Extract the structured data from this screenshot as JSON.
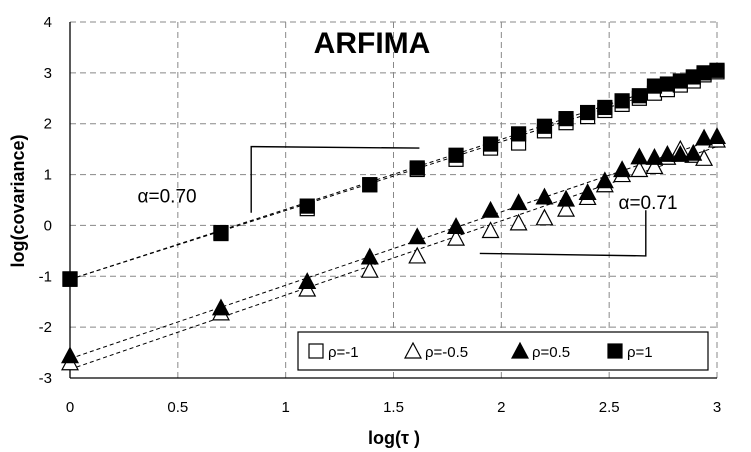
{
  "chart_data": {
    "type": "scatter",
    "title": "ARFIMA",
    "xlabel": "log(τ )",
    "ylabel": "log(covariance)",
    "xlim": [
      0,
      3
    ],
    "ylim": [
      -3,
      4
    ],
    "x_ticks": [
      "0",
      "0.5",
      "1",
      "1.5",
      "2",
      "2.5",
      "3"
    ],
    "y_ticks": [
      "-3",
      "-2",
      "-1",
      "0",
      "1",
      "2",
      "3",
      "4"
    ],
    "grid": true,
    "legend_position": "bottom-right",
    "annotations": [
      {
        "text": "α=0.70",
        "x": 0.45,
        "y": 0.45
      },
      {
        "text": "α=0.71",
        "x": 2.68,
        "y": 0.32
      }
    ],
    "slope_guides": [
      {
        "points": [
          [
            0.84,
            0.25
          ],
          [
            0.84,
            1.55
          ],
          [
            1.62,
            1.52
          ]
        ]
      },
      {
        "points": [
          [
            1.9,
            -0.55
          ],
          [
            2.67,
            -0.6
          ],
          [
            2.67,
            0.3
          ]
        ]
      }
    ],
    "fit_lines": [
      {
        "x": [
          0,
          3
        ],
        "y": [
          -1.06,
          3.07
        ]
      },
      {
        "x": [
          0,
          3
        ],
        "y": [
          -1.06,
          3.0
        ]
      },
      {
        "x": [
          0,
          3
        ],
        "y": [
          -2.62,
          1.71
        ]
      },
      {
        "x": [
          0,
          3
        ],
        "y": [
          -2.83,
          1.55
        ]
      }
    ],
    "series": [
      {
        "name": "ρ=-1",
        "marker": "square-open",
        "x": [
          0,
          0.7,
          1.1,
          1.39,
          1.61,
          1.79,
          1.95,
          2.08,
          2.2,
          2.3,
          2.4,
          2.48,
          2.56,
          2.64,
          2.71,
          2.77,
          2.83,
          2.89,
          2.94,
          3.0
        ],
        "y": [
          -1.06,
          -0.16,
          0.33,
          0.8,
          1.1,
          1.3,
          1.52,
          1.62,
          1.86,
          2.02,
          2.14,
          2.26,
          2.38,
          2.5,
          2.6,
          2.67,
          2.76,
          2.84,
          2.96,
          3.02
        ]
      },
      {
        "name": "ρ=-0.5",
        "marker": "triangle-open",
        "x": [
          0,
          0.7,
          1.1,
          1.39,
          1.61,
          1.79,
          1.95,
          2.08,
          2.2,
          2.3,
          2.4,
          2.48,
          2.56,
          2.64,
          2.71,
          2.77,
          2.83,
          2.89,
          2.94,
          3.0
        ],
        "y": [
          -2.7,
          -1.72,
          -1.25,
          -0.88,
          -0.6,
          -0.25,
          -0.1,
          0.05,
          0.15,
          0.32,
          0.55,
          0.8,
          1.0,
          1.1,
          1.16,
          1.34,
          1.5,
          1.38,
          1.32,
          1.68
        ]
      },
      {
        "name": "ρ=0.5",
        "marker": "triangle-filled",
        "x": [
          0,
          0.7,
          1.1,
          1.39,
          1.61,
          1.79,
          1.95,
          2.08,
          2.2,
          2.3,
          2.4,
          2.48,
          2.56,
          2.64,
          2.71,
          2.77,
          2.83,
          2.89,
          2.94,
          3.0
        ],
        "y": [
          -2.56,
          -1.62,
          -1.1,
          -0.62,
          -0.22,
          -0.02,
          0.3,
          0.45,
          0.56,
          0.52,
          0.65,
          0.88,
          1.1,
          1.35,
          1.34,
          1.4,
          1.4,
          1.42,
          1.72,
          1.75
        ]
      },
      {
        "name": "ρ=1",
        "marker": "square-filled",
        "x": [
          0,
          0.7,
          1.1,
          1.39,
          1.61,
          1.79,
          1.95,
          2.08,
          2.2,
          2.3,
          2.4,
          2.48,
          2.56,
          2.64,
          2.71,
          2.77,
          2.83,
          2.89,
          2.94,
          3.0
        ],
        "y": [
          -1.05,
          -0.14,
          0.38,
          0.8,
          1.13,
          1.38,
          1.6,
          1.8,
          1.95,
          2.1,
          2.22,
          2.32,
          2.45,
          2.55,
          2.74,
          2.78,
          2.84,
          2.92,
          3.0,
          3.05
        ]
      }
    ]
  }
}
